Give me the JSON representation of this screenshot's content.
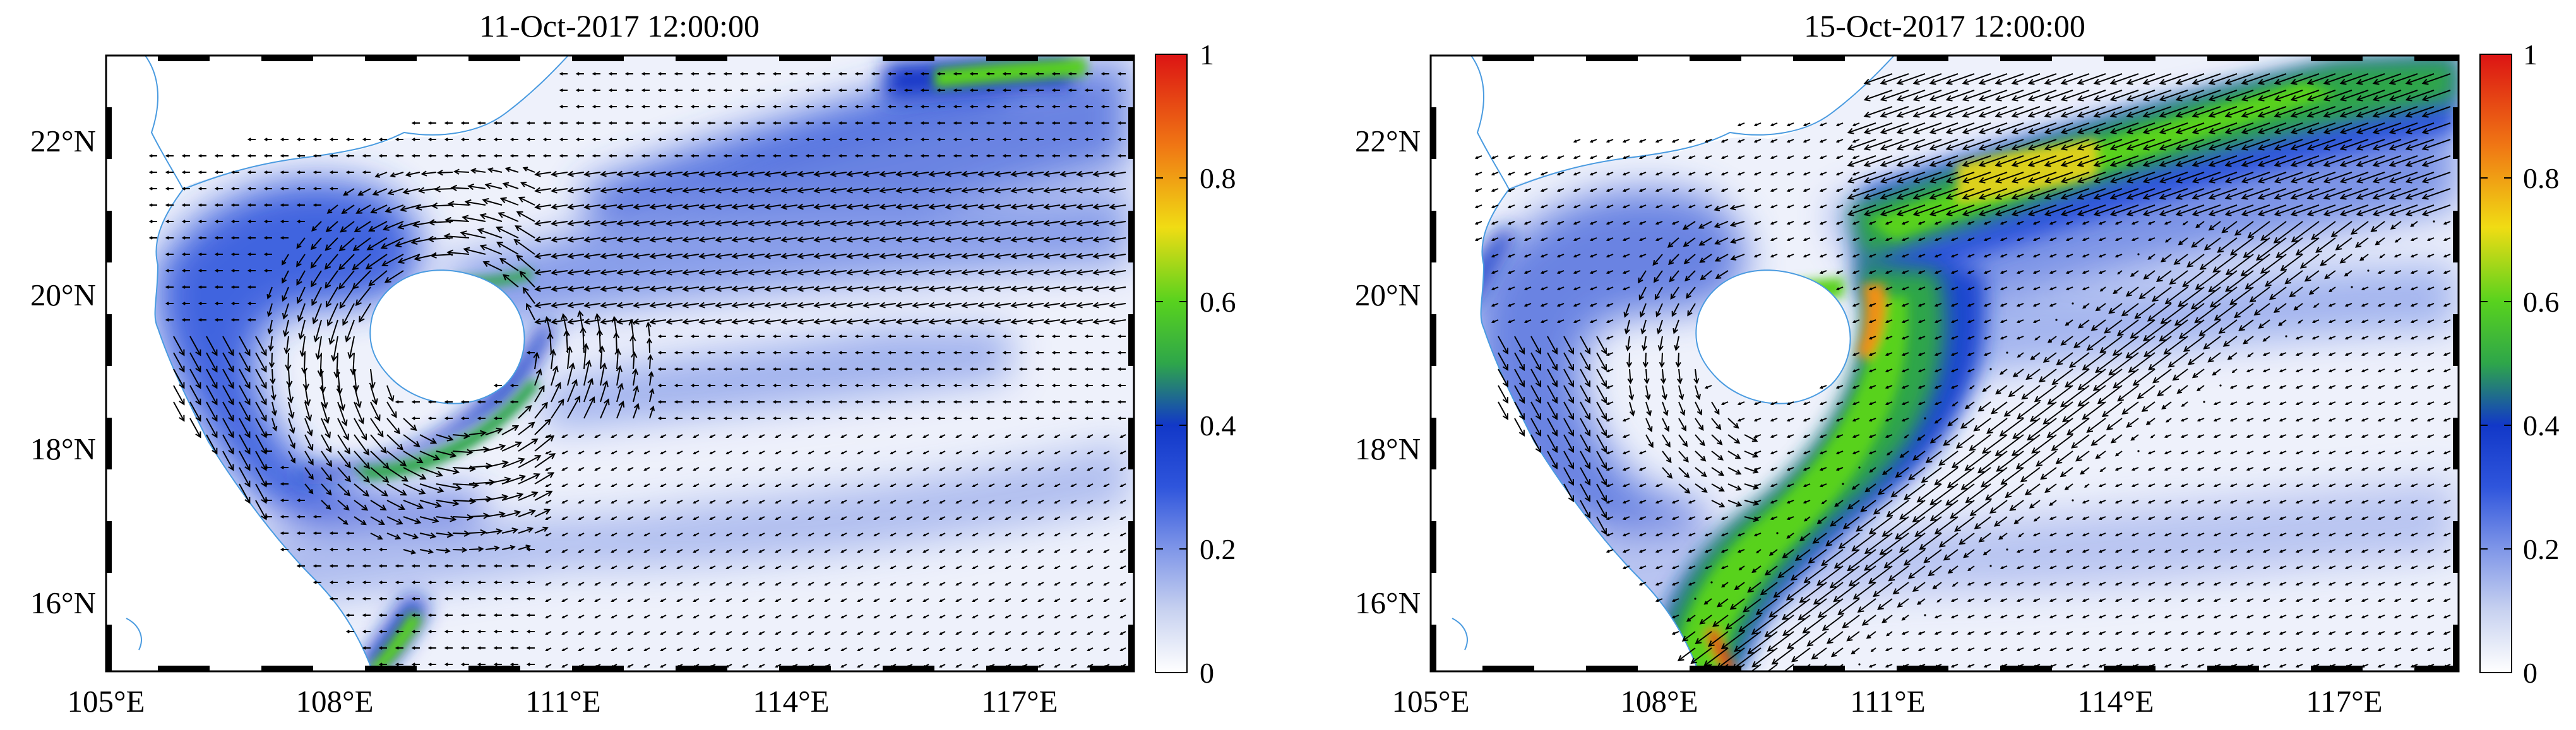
{
  "panels": [
    {
      "title": "11-Oct-2017 12:00:00",
      "variant": "early"
    },
    {
      "title": "15-Oct-2017 12:00:00",
      "variant": "late"
    }
  ],
  "map": {
    "lon_range": [
      105,
      118.5
    ],
    "lat_range": [
      15,
      23
    ],
    "lon_ticks": [
      "105°E",
      "108°E",
      "111°E",
      "114°E",
      "117°E"
    ],
    "lat_ticks": [
      "16°N",
      "18°N",
      "20°N",
      "22°N"
    ]
  },
  "colorbar": {
    "range": [
      0,
      1
    ],
    "ticks": [
      "0",
      "0.2",
      "0.4",
      "0.6",
      "0.8",
      "1"
    ],
    "colors": [
      "#ffffff",
      "#c8d2f0",
      "#7f96e8",
      "#2f55dc",
      "#1238c8",
      "#2ea64a",
      "#58d21e",
      "#f0dc14",
      "#f07814",
      "#dc1414"
    ]
  },
  "colors": {
    "coastline": "#4a9be0",
    "land": "#ffffff",
    "arrows": "#000000"
  }
}
